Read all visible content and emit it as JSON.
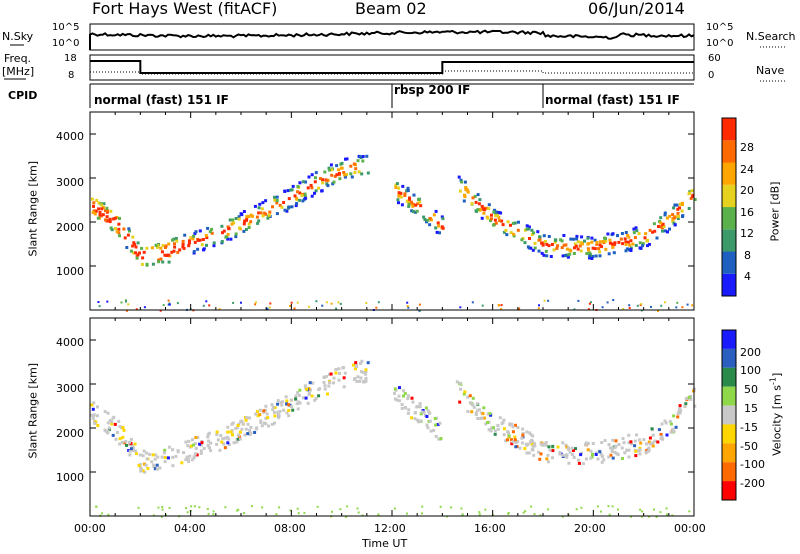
{
  "header": {
    "station": "Fort Hays West (fitACF)",
    "beam": "Beam 02",
    "date": "06/Jun/2014"
  },
  "noise_panel": {
    "left_label": "N.Sky",
    "right_label": "N.Search",
    "left_ticks": [
      "10^5",
      "10^0"
    ],
    "right_ticks": [
      "10^5",
      "10^0"
    ]
  },
  "freq_panel": {
    "left_label_line1": "Freq.",
    "left_label_line2": "[MHz]",
    "right_label": "Nave",
    "left_ticks": [
      "18",
      "8"
    ],
    "right_ticks": [
      "60",
      "0"
    ]
  },
  "cpid_panel": {
    "label": "CPID",
    "modes": [
      "normal (fast) 151 IF",
      "rbsp 200 IF",
      "normal (fast) 151 IF"
    ]
  },
  "colors": {
    "power": [
      "#1a1aff",
      "#1f5fbf",
      "#3c9a6a",
      "#5ab04a",
      "#e6d21e",
      "#ffa500",
      "#ff6a00",
      "#ff2a00"
    ],
    "velocity": [
      "#1a1aff",
      "#2a5fbf",
      "#2a8a4a",
      "#8fd84a",
      "#c8c8c8",
      "#ffd700",
      "#ffa500",
      "#ff6a00",
      "#ff0000"
    ]
  },
  "chart_data": [
    {
      "type": "heatmap",
      "quantity": "power",
      "ylabel": "Slant Range [km]",
      "yticks": [
        "1000",
        "2000",
        "3000",
        "4000"
      ],
      "ylim": [
        0,
        4500
      ],
      "colorbar_label": "Power [dB]",
      "colorbar_ticks": [
        "4",
        "8",
        "12",
        "16",
        "20",
        "24",
        "28"
      ],
      "range_bands": [
        {
          "x": [
            0,
            1,
            2,
            3,
            4,
            5,
            6,
            7,
            8,
            9,
            10,
            11
          ],
          "y": [
            2400,
            2000,
            1250,
            1350,
            1550,
            1750,
            2000,
            2300,
            2600,
            2950,
            3200,
            3350
          ]
        },
        {
          "x": [
            12,
            13,
            14
          ],
          "y": [
            2800,
            2400,
            1900
          ]
        },
        {
          "x": [
            14.5,
            16,
            18,
            20,
            22,
            23,
            24
          ],
          "y": [
            2900,
            2100,
            1500,
            1450,
            1700,
            2100,
            2700
          ]
        }
      ]
    },
    {
      "type": "heatmap",
      "quantity": "velocity",
      "ylabel": "Slant Range [km]",
      "yticks": [
        "1000",
        "2000",
        "3000",
        "4000"
      ],
      "ylim": [
        0,
        4500
      ],
      "colorbar_label": "Velocity [m s",
      "colorbar_label_sup": "-1",
      "colorbar_label_end": "]",
      "colorbar_ticks": [
        "200",
        "100",
        "50",
        "15",
        "-15",
        "-50",
        "-100",
        "-200"
      ]
    }
  ],
  "x_axis": {
    "ticks": [
      "00:00",
      "04:00",
      "08:00",
      "12:00",
      "16:00",
      "20:00",
      "00:00"
    ],
    "label": "Time UT"
  }
}
